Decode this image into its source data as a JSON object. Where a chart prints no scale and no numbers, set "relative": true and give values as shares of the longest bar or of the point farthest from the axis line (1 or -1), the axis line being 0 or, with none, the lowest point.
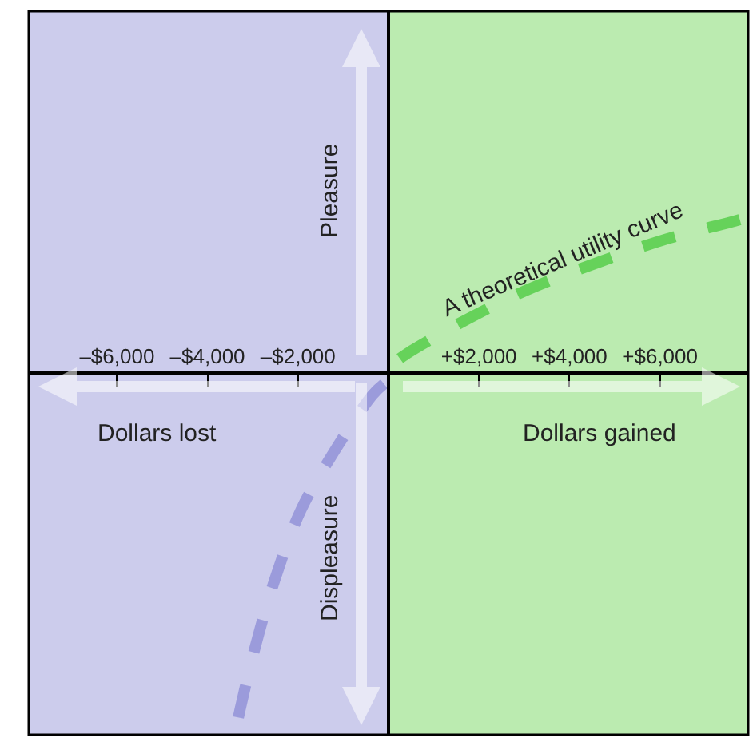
{
  "chart_data": {
    "type": "line",
    "relative": true,
    "line_style": "dashed",
    "grid": false,
    "tick_labels": "x",
    "xlim": [
      -7950,
      7950
    ],
    "xticks": [
      {
        "value": -6000,
        "label": "–$6,000"
      },
      {
        "value": -4000,
        "label": "–$4,000"
      },
      {
        "value": -2000,
        "label": "–$2,000"
      },
      {
        "value": 2000,
        "label": "+$2,000"
      },
      {
        "value": 4000,
        "label": "+$4,000"
      },
      {
        "value": 6000,
        "label": "+$6,000"
      }
    ],
    "series": [
      {
        "color": "#9b9bdb",
        "x": [
          -100,
          -350,
          -1165,
          -1940,
          -2510,
          -2930,
          -3280,
          -3390
        ],
        "values": [
          -0.03,
          -0.06,
          -0.21,
          -0.38,
          -0.57,
          -0.75,
          -0.93,
          -1.0
        ]
      },
      {
        "color": "#66d25a",
        "x": [
          250,
          490,
          1760,
          3070,
          4730,
          6140,
          7660,
          7940
        ],
        "values": [
          0.04,
          0.06,
          0.15,
          0.23,
          0.31,
          0.37,
          0.42,
          0.43
        ]
      }
    ],
    "bands": [
      {
        "axis": "x",
        "from": -7950,
        "to": 0,
        "color": "#ccccec"
      },
      {
        "axis": "x",
        "from": 0,
        "to": 7950,
        "color": "#bbebb0"
      }
    ],
    "annotations": [
      "Pleasure",
      "Displeasure",
      "Dollars lost",
      "Dollars gained",
      "A theoretical utility curve"
    ]
  }
}
